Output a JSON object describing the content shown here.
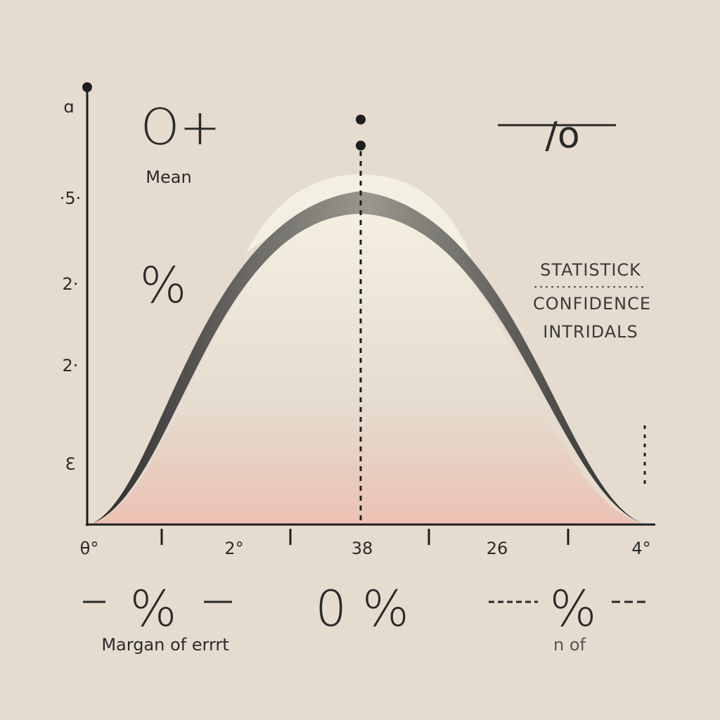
{
  "illustration": {
    "top_left_symbol": "O+",
    "mean_label": "Mean",
    "left_percent": "%",
    "top_right_symbol": "/o",
    "side_text": [
      "STATISTICK",
      "CONFIDENCE",
      "INTRIDALS"
    ],
    "y_labels": [
      "ɑ",
      "·5·",
      "2·",
      "2·",
      "Ɛ"
    ],
    "x_labels": [
      "θ°",
      "2°",
      "38",
      "26",
      "4°"
    ],
    "bottom_left_percent": "%",
    "bottom_center": "0 %",
    "bottom_right_percent": "%",
    "bottom_left_caption": "Margan of errrt",
    "bottom_right_caption": "n of"
  }
}
